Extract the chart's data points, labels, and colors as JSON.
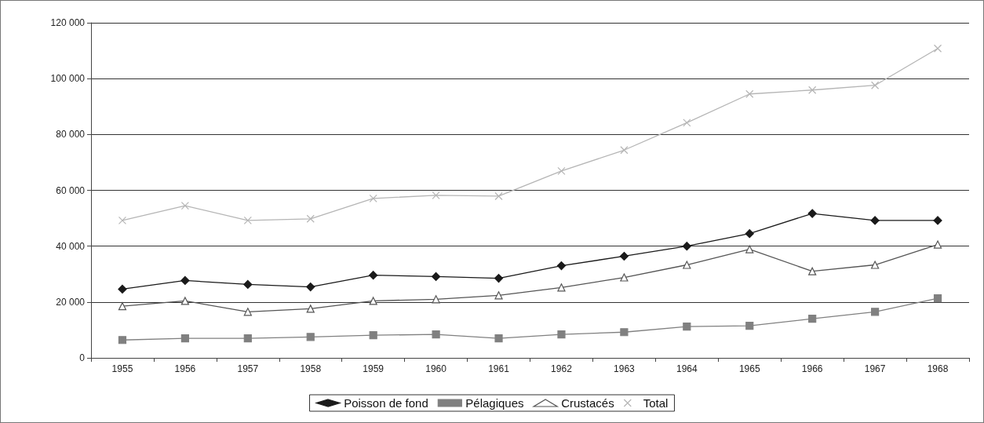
{
  "chart_data": {
    "type": "line",
    "categories": [
      "1955",
      "1956",
      "1957",
      "1958",
      "1959",
      "1960",
      "1961",
      "1962",
      "1963",
      "1964",
      "1965",
      "1966",
      "1967",
      "1968"
    ],
    "series": [
      {
        "name": "Poisson de fond",
        "color": "#1a1a1a",
        "marker": "diamond",
        "values": [
          24600,
          27700,
          26300,
          25400,
          29600,
          29100,
          28500,
          33000,
          36400,
          40000,
          44500,
          51700,
          49200,
          49200
        ]
      },
      {
        "name": "Pélagiques",
        "color": "#808080",
        "marker": "square",
        "values": [
          6400,
          7000,
          7000,
          7500,
          8100,
          8400,
          7000,
          8400,
          9200,
          11200,
          11500,
          14000,
          16500,
          21300
        ]
      },
      {
        "name": "Crustacés",
        "color": "#555555",
        "marker": "triangle",
        "values": [
          18500,
          20400,
          16500,
          17600,
          20400,
          21000,
          22400,
          25200,
          28800,
          33300,
          38900,
          31000,
          33300,
          40600
        ]
      },
      {
        "name": "Total",
        "color": "#b5b5b5",
        "marker": "cross",
        "values": [
          49200,
          54500,
          49200,
          49800,
          57100,
          58200,
          57900,
          66900,
          74400,
          84200,
          94500,
          95900,
          97600,
          110800
        ]
      }
    ],
    "ylim": [
      0,
      120000
    ],
    "yticks": [
      0,
      {
        "value": 20000,
        "label": "20 000"
      },
      {
        "value": 40000,
        "label": "40 000"
      },
      {
        "value": 60000,
        "label": "60 000"
      },
      {
        "value": 80000,
        "label": "80 000"
      },
      {
        "value": 100000,
        "label": "100 000"
      },
      {
        "value": 120000,
        "label": "120 000"
      }
    ],
    "grid": "y",
    "legend": "bottom",
    "line_style": "solid"
  }
}
